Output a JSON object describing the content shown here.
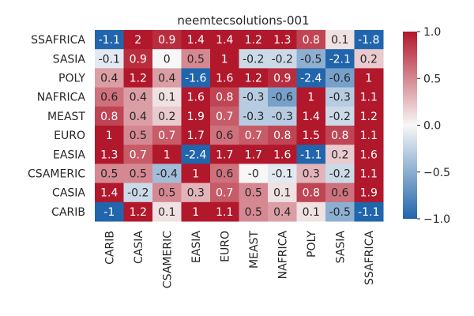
{
  "chart_data": {
    "type": "heatmap",
    "title": "neemtecsolutions-001",
    "xlabel": "",
    "ylabel": "",
    "x_categories": [
      "CARIB",
      "CASIA",
      "CSAMERIC",
      "EASIA",
      "EURO",
      "MEAST",
      "NAFRICA",
      "POLY",
      "SASIA",
      "SSAFRICA"
    ],
    "y_categories": [
      "SSAFRICA",
      "SASIA",
      "POLY",
      "NAFRICA",
      "MEAST",
      "EURO",
      "EASIA",
      "CSAMERIC",
      "CASIA",
      "CARIB"
    ],
    "values": [
      [
        -1.1,
        2,
        0.9,
        1.4,
        1.4,
        1.2,
        1.3,
        0.8,
        0.1,
        -1.8
      ],
      [
        -0.1,
        0.9,
        0,
        0.5,
        1,
        -0.2,
        -0.2,
        -0.5,
        -2.1,
        0.2
      ],
      [
        0.4,
        1.2,
        0.4,
        -1.6,
        1.6,
        1.2,
        0.9,
        -2.4,
        -0.6,
        1
      ],
      [
        0.6,
        0.4,
        0.1,
        1.6,
        0.8,
        -0.3,
        -0.6,
        1,
        -0.3,
        1.1
      ],
      [
        0.8,
        0.4,
        0.2,
        1.9,
        0.7,
        -0.3,
        -0.3,
        1.4,
        -0.2,
        1.2
      ],
      [
        1,
        0.5,
        0.7,
        1.7,
        0.6,
        0.7,
        0.8,
        1.5,
        0.8,
        1.1
      ],
      [
        1.3,
        0.7,
        1,
        -2.4,
        1.7,
        1.7,
        1.6,
        -1.1,
        0.2,
        1.6
      ],
      [
        0.5,
        0.5,
        -0.4,
        1,
        0.6,
        0,
        -0.1,
        0.3,
        -0.2,
        1.1
      ],
      [
        1.4,
        -0.2,
        0.5,
        0.3,
        0.7,
        0.5,
        0.1,
        0.8,
        0.6,
        1.9
      ],
      [
        -1,
        1.2,
        0.1,
        1,
        1.1,
        0.5,
        0.4,
        0.1,
        -0.5,
        -1.1
      ]
    ],
    "cell_labels": [
      [
        "-1.1",
        "2",
        "0.9",
        "1.4",
        "1.4",
        "1.2",
        "1.3",
        "0.8",
        "0.1",
        "-1.8"
      ],
      [
        "-0.1",
        "0.9",
        "0",
        "0.5",
        "1",
        "-0.2",
        "-0.2",
        "-0.5",
        "-2.1",
        "0.2"
      ],
      [
        "0.4",
        "1.2",
        "0.4",
        "-1.6",
        "1.6",
        "1.2",
        "0.9",
        "-2.4",
        "-0.6",
        "1"
      ],
      [
        "0.6",
        "0.4",
        "0.1",
        "1.6",
        "0.8",
        "-0.3",
        "-0.6",
        "1",
        "-0.3",
        "1.1"
      ],
      [
        "0.8",
        "0.4",
        "0.2",
        "1.9",
        "0.7",
        "-0.3",
        "-0.3",
        "1.4",
        "-0.2",
        "1.2"
      ],
      [
        "1",
        "0.5",
        "0.7",
        "1.7",
        "0.6",
        "0.7",
        "0.8",
        "1.5",
        "0.8",
        "1.1"
      ],
      [
        "1.3",
        "0.7",
        "1",
        "-2.4",
        "1.7",
        "1.7",
        "1.6",
        "-1.1",
        "0.2",
        "1.6"
      ],
      [
        "0.5",
        "0.5",
        "-0.4",
        "1",
        "0.6",
        "-0",
        "-0.1",
        "0.3",
        "-0.2",
        "1.1"
      ],
      [
        "1.4",
        "-0.2",
        "0.5",
        "0.3",
        "0.7",
        "0.5",
        "0.1",
        "0.8",
        "0.6",
        "1.9"
      ],
      [
        "-1",
        "1.2",
        "0.1",
        "1",
        "1.1",
        "0.5",
        "0.4",
        "0.1",
        "-0.5",
        "-1.1"
      ]
    ],
    "color_range": [
      -1.0,
      1.0
    ],
    "colormap": [
      "#2166ac",
      "#f7f7f7",
      "#b2182b"
    ],
    "colorbar_ticks": [
      {
        "value": 1.0,
        "label": "1.0"
      },
      {
        "value": 0.5,
        "label": "0.5"
      },
      {
        "value": 0.0,
        "label": "0.0"
      },
      {
        "value": -0.5,
        "label": "−0.5"
      },
      {
        "value": -1.0,
        "label": "−1.0"
      }
    ],
    "grid": false,
    "legend": "colorbar-right"
  }
}
